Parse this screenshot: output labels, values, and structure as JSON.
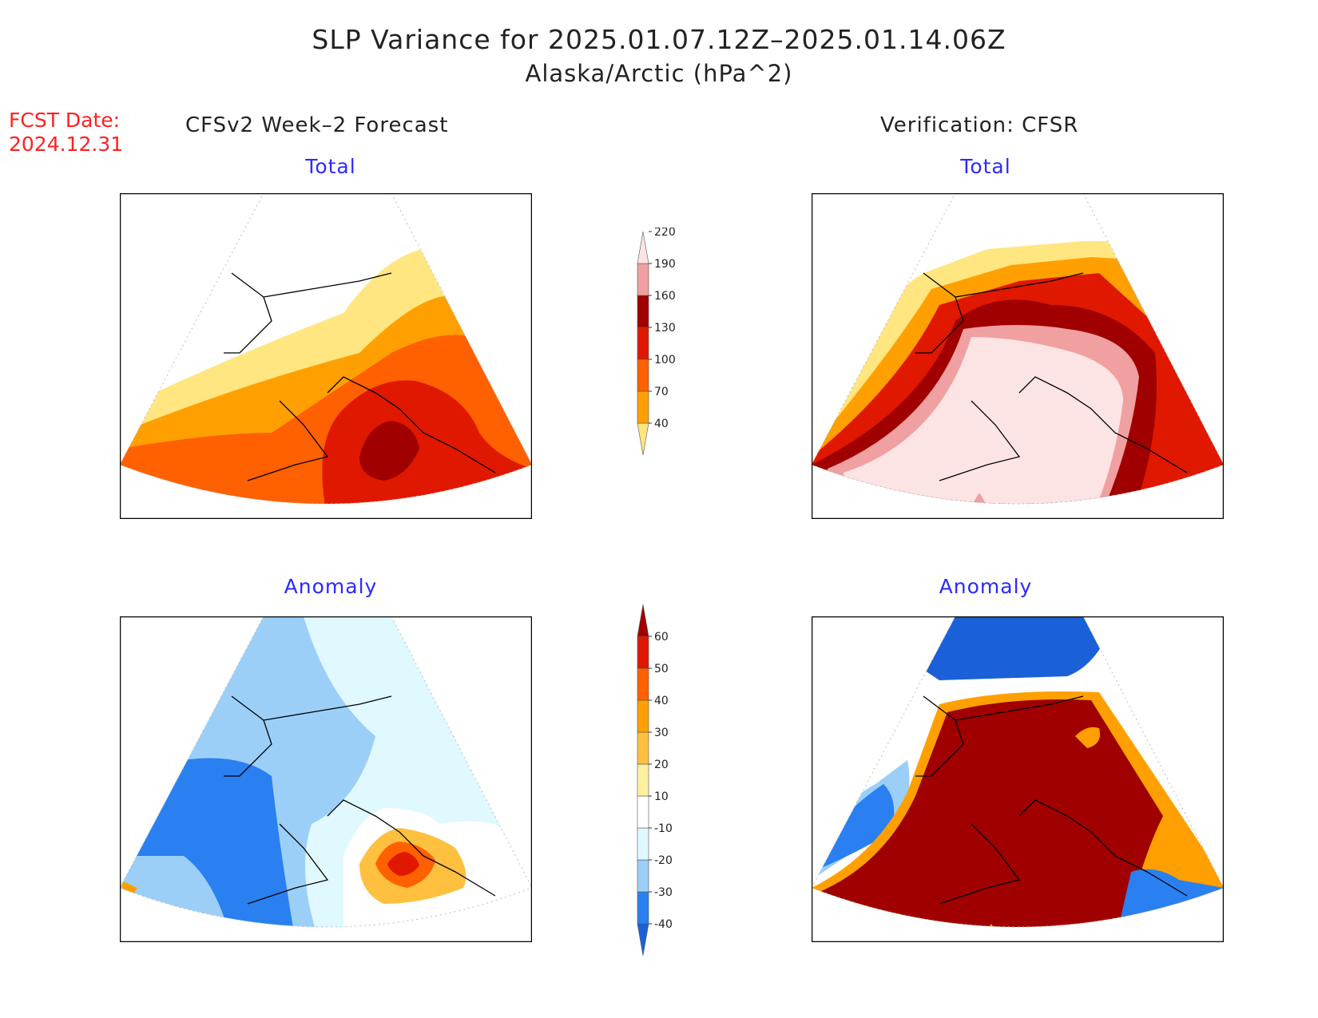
{
  "header": {
    "title": "SLP Variance for 2025.01.07.12Z–2025.01.14.06Z",
    "subtitle": "Alaska/Arctic (hPa^2)"
  },
  "fcst": {
    "label": "FCST Date:",
    "date": "2024.12.31"
  },
  "columns": {
    "left": "CFSv2 Week–2 Forecast",
    "right": "Verification: CFSR"
  },
  "panels": {
    "p1": {
      "title": "Total"
    },
    "p2": {
      "title": "Total"
    },
    "p3": {
      "title": "Anomaly"
    },
    "p4": {
      "title": "Anomaly"
    }
  },
  "colorbars": {
    "total": {
      "labels": [
        "40",
        "70",
        "100",
        "130",
        "160",
        "190",
        "220"
      ],
      "colors": [
        "#ffe680",
        "#ffa000",
        "#ff6000",
        "#e01800",
        "#a00000",
        "#f0a0a0",
        "#fde4e4"
      ]
    },
    "anomaly": {
      "labels": [
        "-40",
        "-30",
        "-20",
        "-10",
        "10",
        "20",
        "30",
        "40",
        "50",
        "60"
      ],
      "colors": [
        "#1a60d8",
        "#2a80f0",
        "#9ccff8",
        "#e0f8ff",
        "#ffffff",
        "#fff0a0",
        "#ffc040",
        "#ffa000",
        "#ff6000",
        "#e01800",
        "#a00000"
      ]
    }
  }
}
